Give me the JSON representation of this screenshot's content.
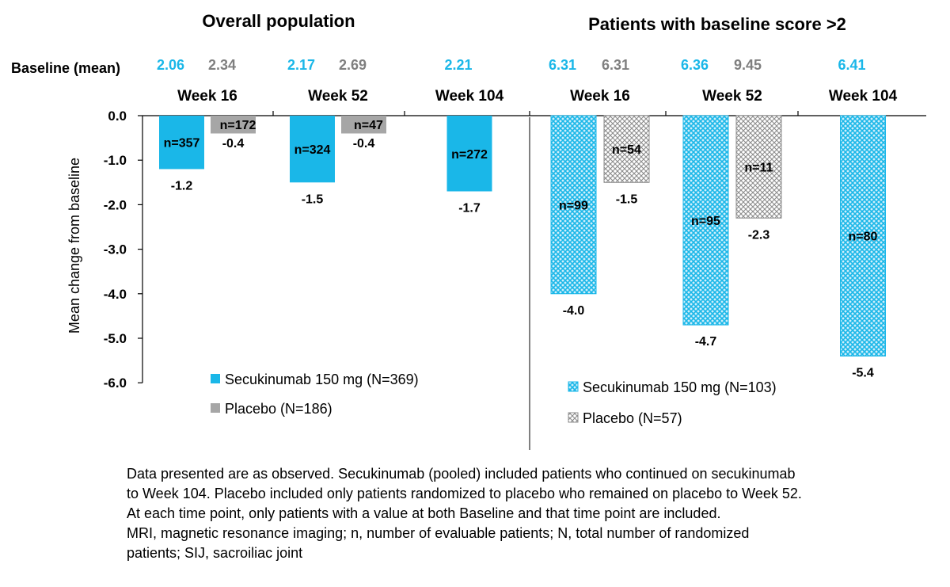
{
  "chart_data": {
    "type": "bar",
    "ylabel": "Mean change from baseline",
    "ylim": [
      -6.0,
      0.0
    ],
    "yticks": [
      "0.0",
      "-1.0",
      "-2.0",
      "-3.0",
      "-4.0",
      "-5.0",
      "-6.0"
    ],
    "baseline_label": "Baseline (mean)",
    "colors": {
      "secukinumab": "#1ab7e8",
      "placebo": "#a6a6a6",
      "baseline_secukinumab": "#1ab7e8",
      "baseline_placebo": "#7f7f7f"
    },
    "panels": [
      {
        "title": "Overall population",
        "pattern": "solid",
        "categories": [
          "Week 16",
          "Week 52",
          "Week 104"
        ],
        "baseline": {
          "secukinumab": [
            "2.06",
            "2.17",
            "2.21"
          ],
          "placebo": [
            "2.34",
            "2.69",
            null
          ]
        },
        "series": [
          {
            "name": "Secukinumab 150 mg (N=369)",
            "key": "secukinumab",
            "values": [
              -1.2,
              -1.5,
              -1.7
            ],
            "value_labels": [
              "-1.2",
              "-1.5",
              "-1.7"
            ],
            "n": [
              "n=357",
              "n=324",
              "n=272"
            ]
          },
          {
            "name": "Placebo (N=186)",
            "key": "placebo",
            "values": [
              -0.4,
              -0.4,
              null
            ],
            "value_labels": [
              "-0.4",
              "-0.4",
              null
            ],
            "n": [
              "n=172",
              "n=47",
              null
            ]
          }
        ]
      },
      {
        "title": "Patients with baseline score >2",
        "pattern": "hatched",
        "categories": [
          "Week 16",
          "Week 52",
          "Week 104"
        ],
        "baseline": {
          "secukinumab": [
            "6.31",
            "6.36",
            "6.41"
          ],
          "placebo": [
            "6.31",
            "9.45",
            null
          ]
        },
        "series": [
          {
            "name": "Secukinumab 150 mg (N=103)",
            "key": "secukinumab",
            "values": [
              -4.0,
              -4.7,
              -5.4
            ],
            "value_labels": [
              "-4.0",
              "-4.7",
              "-5.4"
            ],
            "n": [
              "n=99",
              "n=95",
              "n=80"
            ]
          },
          {
            "name": "Placebo (N=57)",
            "key": "placebo",
            "values": [
              -1.5,
              -2.3,
              null
            ],
            "value_labels": [
              "-1.5",
              "-2.3",
              null
            ],
            "n": [
              "n=54",
              "n=11",
              null
            ]
          }
        ]
      }
    ]
  },
  "footnote": {
    "lines": [
      "Data presented are as observed. Secukinumab (pooled) included patients who continued on secukinumab",
      "to Week 104. Placebo included only patients randomized to placebo who remained on placebo to Week 52.",
      "At each time point, only patients with a value at both Baseline and that time point are included.",
      "MRI, magnetic resonance imaging; n, number of evaluable patients; N, total number of randomized",
      "patients; SIJ, sacroiliac joint"
    ]
  }
}
